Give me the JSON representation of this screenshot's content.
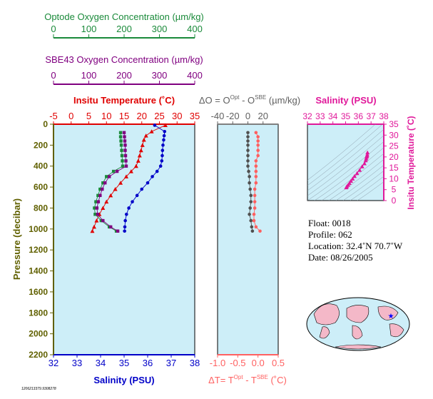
{
  "colors": {
    "temperature": "#e00000",
    "salinity": "#0000c8",
    "optode": "#1a8a3a",
    "sbe43": "#800080",
    "delta_o": "#505050",
    "delta_t": "#ff6060",
    "salinity_inset": "#e0189a",
    "pressure_axis": "#606000",
    "plot_bg": "#cdeef8"
  },
  "top_axes": {
    "optode_label": "Optode Oxygen Concentration (µm/kg)",
    "optode_ticks": [
      "0",
      "100",
      "200",
      "300",
      "400"
    ],
    "sbe43_label": "SBE43 Oxygen Concentration (µm/kg)",
    "sbe43_ticks": [
      "0",
      "100",
      "200",
      "300",
      "400"
    ]
  },
  "main_panel": {
    "temp_label": "Insitu Temperature (˚C)",
    "temp_ticks": [
      "-5",
      "0",
      "5",
      "10",
      "15",
      "20",
      "25",
      "30",
      "35"
    ],
    "salinity_label": "Salinity (PSU)",
    "salinity_ticks": [
      "32",
      "33",
      "34",
      "35",
      "36",
      "37",
      "38"
    ],
    "pressure_label": "Pressure (decibar)",
    "pressure_ticks": [
      "0",
      "200",
      "400",
      "600",
      "800",
      "1000",
      "1200",
      "1400",
      "1600",
      "1800",
      "2000",
      "2200"
    ]
  },
  "delta_panel": {
    "do_label_main": "ΔO = O",
    "do_sup1": "Opt",
    "do_mid": " - O",
    "do_sup2": "SBE",
    "do_units": " (µm/kg)",
    "do_ticks": [
      "-40",
      "-20",
      "0",
      "20"
    ],
    "dt_label_main": "ΔT= T",
    "dt_sup1": "Opt",
    "dt_mid": " - T",
    "dt_sup2": "SBE",
    "dt_units": " (˚C)",
    "dt_ticks": [
      "-1.0",
      "-0.5",
      "0.0",
      "0.5"
    ]
  },
  "ts_panel": {
    "salinity_label": "Salinity (PSU)",
    "salinity_ticks": [
      "32",
      "33",
      "34",
      "35",
      "36",
      "37",
      "38"
    ],
    "temp_label": "Insitu Temperature (˚C)",
    "temp_ticks": [
      "0",
      "5",
      "10",
      "15",
      "20",
      "25",
      "30",
      "35"
    ]
  },
  "info": {
    "float": "Float:  0018",
    "profile": "Profile:  062",
    "location": "Location:  32.4˚N  70.7˚W",
    "date": "Date:  08/26/2005"
  },
  "footer_id": "1206213379.9308278",
  "chart_data": [
    {
      "type": "scatter",
      "title": "",
      "axes": {
        "y": {
          "label": "Pressure (decibar)",
          "range": [
            2200,
            0
          ],
          "inverted": true
        },
        "x_temperature": {
          "label": "Insitu Temperature (˚C)",
          "range": [
            -5,
            35
          ]
        },
        "x_salinity": {
          "label": "Salinity (PSU)",
          "range": [
            32,
            38
          ]
        },
        "x_optode": {
          "label": "Optode Oxygen Concentration (µm/kg)",
          "range": [
            0,
            400
          ]
        },
        "x_sbe43": {
          "label": "SBE43 Oxygen Concentration (µm/kg)",
          "range": [
            0,
            400
          ]
        }
      },
      "series": [
        {
          "name": "Insitu Temperature",
          "axis": "x_temperature",
          "marker": "triangle",
          "points": [
            [
              26.7,
              10
            ],
            [
              22.8,
              70
            ],
            [
              21.2,
              110
            ],
            [
              20.6,
              150
            ],
            [
              20.2,
              200
            ],
            [
              19.8,
              250
            ],
            [
              19.4,
              300
            ],
            [
              19.0,
              350
            ],
            [
              18.4,
              400
            ],
            [
              17.0,
              450
            ],
            [
              15.6,
              500
            ],
            [
              14.0,
              560
            ],
            [
              12.5,
              620
            ],
            [
              11.2,
              680
            ],
            [
              10.0,
              740
            ],
            [
              9.0,
              800
            ],
            [
              8.0,
              860
            ],
            [
              7.2,
              920
            ],
            [
              6.5,
              980
            ],
            [
              6.0,
              1020
            ]
          ]
        },
        {
          "name": "Salinity",
          "axis": "x_salinity",
          "marker": "circle",
          "points": [
            [
              36.3,
              10
            ],
            [
              36.72,
              70
            ],
            [
              36.7,
              110
            ],
            [
              36.68,
              150
            ],
            [
              36.65,
              200
            ],
            [
              36.63,
              250
            ],
            [
              36.62,
              300
            ],
            [
              36.6,
              350
            ],
            [
              36.55,
              400
            ],
            [
              36.4,
              450
            ],
            [
              36.2,
              500
            ],
            [
              36.0,
              560
            ],
            [
              35.75,
              620
            ],
            [
              35.55,
              680
            ],
            [
              35.35,
              740
            ],
            [
              35.2,
              800
            ],
            [
              35.1,
              860
            ],
            [
              35.05,
              920
            ],
            [
              35.03,
              980
            ],
            [
              35.02,
              1020
            ]
          ]
        },
        {
          "name": "Optode Oxygen",
          "axis": "x_optode",
          "marker": "square",
          "points": [
            [
              190,
              80
            ],
            [
              190,
              120
            ],
            [
              191,
              160
            ],
            [
              192,
              200
            ],
            [
              193,
              250
            ],
            [
              194,
              300
            ],
            [
              195,
              350
            ],
            [
              196,
              400
            ],
            [
              170,
              450
            ],
            [
              150,
              500
            ],
            [
              140,
              560
            ],
            [
              132,
              620
            ],
            [
              126,
              680
            ],
            [
              120,
              740
            ],
            [
              116,
              800
            ],
            [
              118,
              860
            ],
            [
              135,
              920
            ],
            [
              158,
              980
            ],
            [
              178,
              1020
            ]
          ]
        },
        {
          "name": "SBE43 Oxygen",
          "axis": "x_sbe43",
          "marker": "square",
          "points": [
            [
              200,
              80
            ],
            [
              201,
              120
            ],
            [
              202,
              160
            ],
            [
              203,
              200
            ],
            [
              203,
              250
            ],
            [
              204,
              300
            ],
            [
              205,
              350
            ],
            [
              206,
              400
            ],
            [
              180,
              450
            ],
            [
              158,
              500
            ],
            [
              146,
              560
            ],
            [
              138,
              620
            ],
            [
              132,
              680
            ],
            [
              127,
              740
            ],
            [
              123,
              800
            ],
            [
              125,
              860
            ],
            [
              140,
              920
            ],
            [
              162,
              980
            ],
            [
              182,
              1020
            ]
          ]
        }
      ]
    },
    {
      "type": "scatter",
      "title": "",
      "axes": {
        "y": {
          "label": "Pressure (decibar)",
          "range": [
            2200,
            0
          ],
          "inverted": true
        },
        "x_delta_o": {
          "label": "ΔO = OOpt - OSBE (µm/kg)",
          "range": [
            -50,
            30
          ]
        },
        "x_delta_t": {
          "label": "ΔT= TOpt - TSBE (˚C)",
          "range": [
            -1.0,
            0.5
          ]
        }
      },
      "series": [
        {
          "name": "ΔO",
          "axis": "x_delta_o",
          "marker": "circle",
          "points": [
            [
              -10,
              80
            ],
            [
              -10,
              120
            ],
            [
              -10,
              160
            ],
            [
              -10,
              200
            ],
            [
              -10,
              250
            ],
            [
              -10,
              300
            ],
            [
              -10,
              350
            ],
            [
              -10,
              400
            ],
            [
              -9,
              450
            ],
            [
              -8,
              500
            ],
            [
              -8,
              560
            ],
            [
              -7,
              620
            ],
            [
              -6,
              680
            ],
            [
              -6,
              740
            ],
            [
              -7,
              800
            ],
            [
              -8,
              860
            ],
            [
              -6,
              920
            ],
            [
              -5,
              980
            ],
            [
              -4,
              1020
            ]
          ]
        },
        {
          "name": "ΔT",
          "axis": "x_delta_t",
          "marker": "circle",
          "points": [
            [
              -0.05,
              80
            ],
            [
              0.0,
              120
            ],
            [
              0.0,
              160
            ],
            [
              0.0,
              200
            ],
            [
              0.0,
              250
            ],
            [
              0.0,
              300
            ],
            [
              -0.05,
              350
            ],
            [
              -0.05,
              400
            ],
            [
              -0.05,
              450
            ],
            [
              -0.05,
              500
            ],
            [
              -0.05,
              560
            ],
            [
              -0.08,
              620
            ],
            [
              -0.08,
              680
            ],
            [
              -0.08,
              740
            ],
            [
              -0.08,
              800
            ],
            [
              -0.1,
              860
            ],
            [
              -0.1,
              920
            ],
            [
              -0.05,
              980
            ],
            [
              0.05,
              1020
            ]
          ]
        }
      ]
    },
    {
      "type": "scatter",
      "title": "",
      "axes": {
        "x": {
          "label": "Salinity (PSU)",
          "range": [
            32,
            38
          ]
        },
        "y": {
          "label": "Insitu Temperature (˚C)",
          "range": [
            0,
            35
          ]
        }
      },
      "series": [
        {
          "name": "T-S",
          "marker": "triangle",
          "points": [
            [
              36.72,
              22.0
            ],
            [
              36.7,
              21.0
            ],
            [
              36.68,
              20.5
            ],
            [
              36.65,
              20.0
            ],
            [
              36.62,
              19.2
            ],
            [
              36.58,
              18.4
            ],
            [
              36.48,
              17.0
            ],
            [
              36.3,
              15.6
            ],
            [
              36.1,
              14.0
            ],
            [
              35.9,
              12.5
            ],
            [
              35.7,
              11.2
            ],
            [
              35.55,
              10.0
            ],
            [
              35.42,
              9.0
            ],
            [
              35.3,
              8.0
            ],
            [
              35.2,
              7.2
            ],
            [
              35.1,
              6.5
            ],
            [
              35.05,
              6.0
            ]
          ]
        }
      ]
    }
  ]
}
